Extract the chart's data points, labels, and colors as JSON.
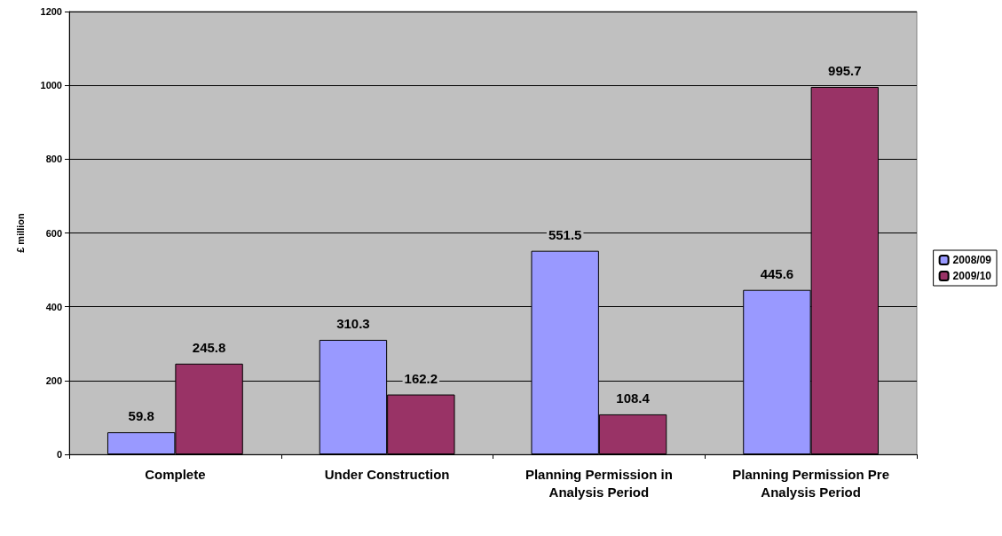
{
  "chart_data": {
    "type": "bar",
    "ylabel": "£ million",
    "categories": [
      "Complete",
      "Under Construction",
      "Planning Permission in\nAnalysis Period",
      "Planning Permission Pre\nAnalysis Period"
    ],
    "series": [
      {
        "name": "2008/09",
        "color": "#9999ff",
        "values": [
          59.8,
          310.3,
          551.5,
          445.6
        ]
      },
      {
        "name": "2009/10",
        "color": "#993366",
        "values": [
          245.8,
          162.2,
          108.4,
          995.7
        ]
      }
    ],
    "ylim": [
      0,
      1200
    ],
    "yticks": [
      0,
      200,
      400,
      600,
      800,
      1000,
      1200
    ],
    "grid": "y",
    "legend": "right",
    "data_labels": true
  }
}
